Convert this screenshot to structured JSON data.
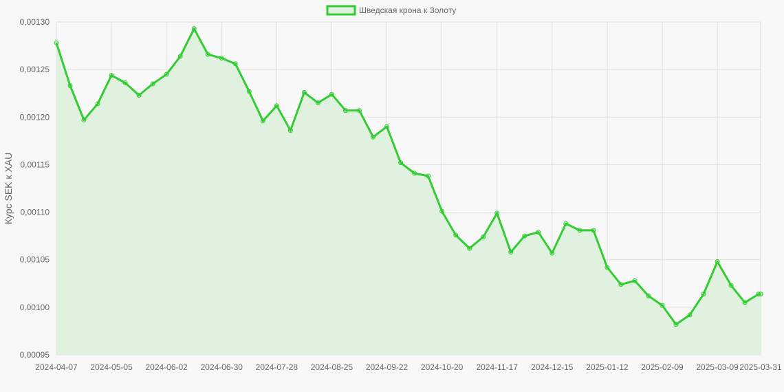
{
  "chart_data": {
    "type": "area",
    "title": "",
    "xlabel": "",
    "ylabel": "Курс SEK к XAU",
    "legend_position": "top-center",
    "grid": true,
    "ylim": [
      0.00095,
      0.0013
    ],
    "y_ticks": [
      "0,00095",
      "0,00100",
      "0,00105",
      "0,00110",
      "0,00115",
      "0,00120",
      "0,00125",
      "0,00130"
    ],
    "x_tick_labels": [
      "2024-04-07",
      "2024-05-05",
      "2024-06-02",
      "2024-06-30",
      "2024-07-28",
      "2024-08-25",
      "2024-09-22",
      "2024-10-20",
      "2024-11-17",
      "2024-12-15",
      "2025-01-12",
      "2025-02-09",
      "2025-03-09",
      "2025-03-31"
    ],
    "colors": {
      "line": "#33cc33",
      "fill": "#e0f2df",
      "grid": "#dddddd",
      "background": "#f8f8f8"
    },
    "series": [
      {
        "name": "Шведская крона к Золоту",
        "x": [
          "2024-04-07",
          "2024-04-14",
          "2024-04-21",
          "2024-04-28",
          "2024-05-05",
          "2024-05-12",
          "2024-05-19",
          "2024-05-26",
          "2024-06-02",
          "2024-06-09",
          "2024-06-16",
          "2024-06-23",
          "2024-06-30",
          "2024-07-07",
          "2024-07-14",
          "2024-07-21",
          "2024-07-28",
          "2024-08-04",
          "2024-08-11",
          "2024-08-18",
          "2024-08-25",
          "2024-09-01",
          "2024-09-08",
          "2024-09-15",
          "2024-09-22",
          "2024-09-29",
          "2024-10-06",
          "2024-10-13",
          "2024-10-20",
          "2024-10-27",
          "2024-11-03",
          "2024-11-10",
          "2024-11-17",
          "2024-11-24",
          "2024-12-01",
          "2024-12-08",
          "2024-12-15",
          "2024-12-22",
          "2024-12-29",
          "2025-01-05",
          "2025-01-12",
          "2025-01-19",
          "2025-01-26",
          "2025-02-02",
          "2025-02-09",
          "2025-02-16",
          "2025-02-23",
          "2025-03-02",
          "2025-03-09",
          "2025-03-16",
          "2025-03-23",
          "2025-03-30",
          "2025-03-31"
        ],
        "values": [
          0.001278,
          0.001233,
          0.001197,
          0.001214,
          0.001244,
          0.001236,
          0.001223,
          0.001235,
          0.001245,
          0.001264,
          0.001293,
          0.001266,
          0.001262,
          0.001256,
          0.001227,
          0.001196,
          0.001212,
          0.001186,
          0.001226,
          0.001215,
          0.001224,
          0.001207,
          0.001207,
          0.001179,
          0.00119,
          0.001152,
          0.001141,
          0.001138,
          0.001101,
          0.001076,
          0.001062,
          0.001074,
          0.001099,
          0.001058,
          0.001075,
          0.001079,
          0.001057,
          0.001088,
          0.001081,
          0.001081,
          0.001042,
          0.001024,
          0.001028,
          0.001012,
          0.001002,
          0.000982,
          0.000992,
          0.001014,
          0.001048,
          0.001023,
          0.001005,
          0.001014,
          0.001014
        ]
      }
    ]
  }
}
